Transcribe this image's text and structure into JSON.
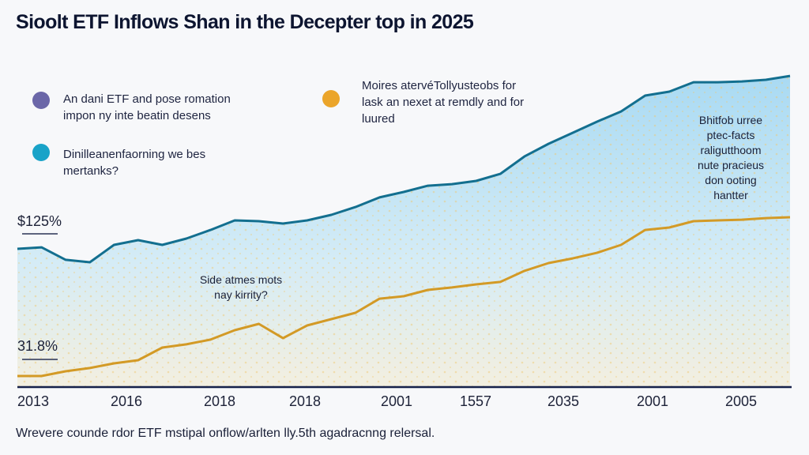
{
  "chart_data": {
    "type": "area",
    "title": "Sioolt ETF Inflows Shan in the Decepter top in 2025",
    "caption": "Wrevere counde rdor ETF mstipal onflow/arlten lly.5th agadracnng relersal.",
    "x_tick_labels": [
      "2013",
      "2016",
      "2018",
      "2018",
      "2001",
      "1557",
      "2035",
      "2001",
      "2005"
    ],
    "y_tick_labels": [
      {
        "label": "$125%",
        "value": 125,
        "color": "#1592b8"
      },
      {
        "label": "31.8%",
        "value": 31.8,
        "color": "#c8901e"
      }
    ],
    "ylim": [
      11.3,
      298.5
    ],
    "grid": false,
    "legend_placement": "top-left",
    "legend": [
      {
        "label_lines": [
          "An dani ETF and pose romation",
          "impon ny inte beatin desens"
        ],
        "color": "#6b67a8"
      },
      {
        "label_lines": [
          "Dinilleanenfaorning we bes",
          "mertanks?"
        ],
        "color": "#19a3c8"
      },
      {
        "label_lines": [
          "Moires atervéTollyusteobs for",
          "lask an nexet at remdly and for",
          "luured"
        ],
        "color": "#eba52a"
      }
    ],
    "annotations": [
      {
        "lines": [
          "Side atmes mots",
          "nay kirrity?"
        ]
      },
      {
        "lines": [
          "Bhitfob urree",
          "ptec-facts",
          "raligutthoom",
          "nute pracieus",
          "don ooting",
          "hantter"
        ]
      }
    ],
    "series": [
      {
        "color": "#136f8f",
        "fill": "#bfe2f5",
        "values": [
          113.9,
          115.0,
          105.7,
          103.9,
          116.8,
          120.3,
          116.8,
          121.5,
          127.9,
          135.0,
          134.4,
          132.6,
          135.0,
          139.1,
          144.9,
          152.0,
          156.1,
          160.7,
          161.9,
          164.3,
          169.5,
          182.4,
          191.8,
          200.0,
          208.2,
          215.8,
          227.6,
          230.5,
          237.5,
          237.5,
          238.1,
          239.3,
          242.2
        ]
      },
      {
        "color": "#d39a26",
        "values": [
          19.5,
          19.5,
          23.0,
          25.4,
          28.9,
          31.2,
          40.6,
          43.0,
          46.5,
          53.5,
          58.2,
          47.6,
          57.0,
          61.7,
          66.4,
          76.9,
          78.7,
          83.4,
          85.2,
          87.5,
          89.3,
          97.5,
          103.3,
          106.8,
          110.9,
          116.8,
          127.9,
          129.7,
          134.4,
          135.0,
          135.5,
          136.7,
          137.3
        ]
      }
    ]
  }
}
